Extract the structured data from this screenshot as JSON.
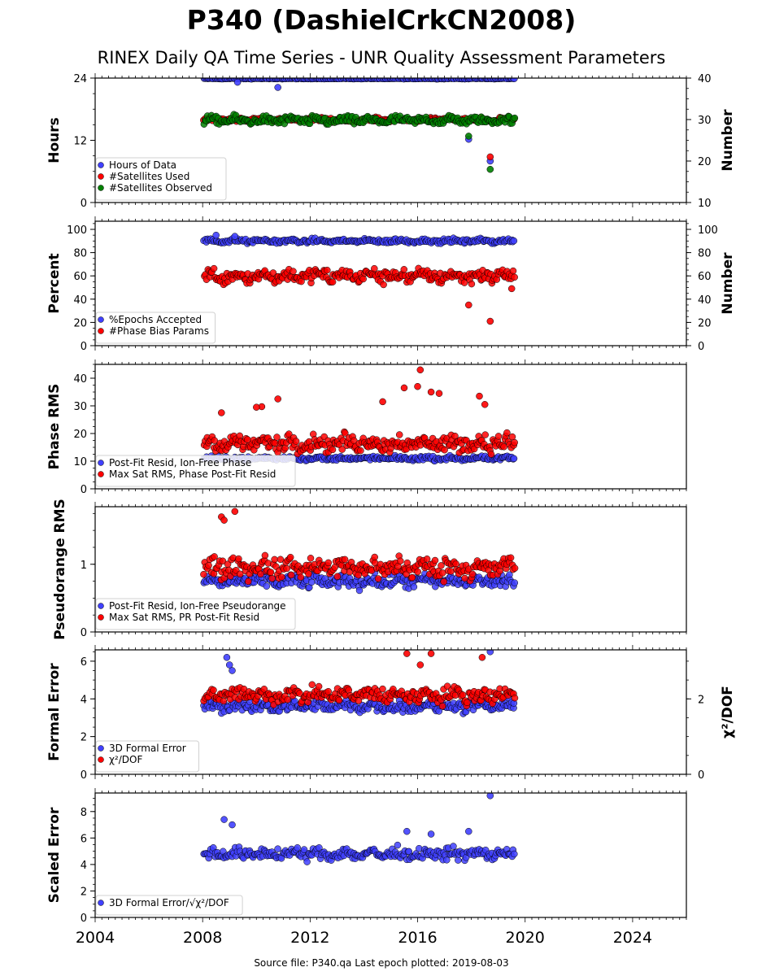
{
  "header": {
    "title": "P340 (DashielCrkCN2008)",
    "subtitle": "RINEX Daily QA Time Series - UNR Quality Assessment Parameters"
  },
  "footer": "Source file: P340.qa Last epoch plotted: 2019-08-03",
  "colors": {
    "blue": "#4040ff",
    "red": "#ff0000",
    "green": "#008000"
  },
  "chart_data": [
    {
      "type": "scatter",
      "xlim": [
        2004,
        2026
      ],
      "ylabel": "Hours",
      "ylim": [
        0,
        24
      ],
      "yticks": [
        "0",
        "12",
        "24"
      ],
      "y2label": "Number",
      "y2lim": [
        10,
        40
      ],
      "y2ticks": [
        "10",
        "20",
        "30",
        "40"
      ],
      "legend_position": "lower-left",
      "series": [
        {
          "name": "Hours of Data",
          "color": "blue",
          "axis": "left",
          "base": 23.9,
          "spread": 0.05,
          "outliers": [
            [
              2009.3,
              23.2
            ],
            [
              2010.8,
              22.2
            ],
            [
              2017.9,
              12.2
            ],
            [
              2018.7,
              8.0
            ]
          ]
        },
        {
          "name": "#Satellites Used",
          "color": "red",
          "axis": "right",
          "base": 30,
          "spread": 0.4,
          "outliers": [
            [
              2009.8,
              30.0
            ],
            [
              2018.7,
              21.0
            ]
          ]
        },
        {
          "name": "#Satellites Observed",
          "color": "green",
          "axis": "right",
          "base": 29.8,
          "spread": 0.8,
          "outliers": [
            [
              2017.9,
              26.0
            ],
            [
              2018.7,
              18.0
            ]
          ]
        }
      ]
    },
    {
      "type": "scatter",
      "xlim": [
        2004,
        2026
      ],
      "ylabel": "Percent",
      "ylim": [
        0,
        107
      ],
      "yticks": [
        "0",
        "20",
        "40",
        "60",
        "80",
        "100"
      ],
      "y2label": "Number",
      "y2lim": [
        0,
        107
      ],
      "y2ticks": [
        "0",
        "20",
        "40",
        "60",
        "80",
        "100"
      ],
      "legend_position": "lower-left",
      "series": [
        {
          "name": "%Epochs Accepted",
          "color": "blue",
          "axis": "left",
          "base": 90,
          "spread": 1.5,
          "outliers": [
            [
              2008.5,
              95
            ],
            [
              2009.2,
              94
            ]
          ]
        },
        {
          "name": "#Phase Bias Params",
          "color": "red",
          "axis": "left",
          "base": 60,
          "spread": 5,
          "outliers": [
            [
              2017.9,
              35
            ],
            [
              2018.7,
              21
            ],
            [
              2019.5,
              49
            ]
          ]
        }
      ]
    },
    {
      "type": "scatter",
      "xlim": [
        2004,
        2026
      ],
      "ylabel": "Phase RMS",
      "ylim": [
        0,
        45
      ],
      "yticks": [
        "0",
        "10",
        "20",
        "30",
        "40"
      ],
      "legend_position": "lower-left",
      "series": [
        {
          "name": "Post-Fit Resid, Ion-Free Phase",
          "color": "blue",
          "axis": "left",
          "base": 11,
          "spread": 0.6,
          "outliers": []
        },
        {
          "name": "Max Sat RMS, Phase Post-Fit Resid",
          "color": "red",
          "axis": "left",
          "base": 16.5,
          "spread": 2.5,
          "outliers": [
            [
              2016.1,
              43
            ],
            [
              2015.5,
              36.5
            ],
            [
              2016.5,
              35
            ],
            [
              2016.8,
              34.5
            ],
            [
              2018.3,
              33.5
            ],
            [
              2010.8,
              32.5
            ],
            [
              2014.7,
              31.5
            ],
            [
              2018.5,
              30.5
            ],
            [
              2010.2,
              29.7
            ],
            [
              2016.0,
              37
            ],
            [
              2008.7,
              27.5
            ],
            [
              2010.0,
              29.5
            ]
          ]
        }
      ]
    },
    {
      "type": "scatter",
      "xlim": [
        2004,
        2026
      ],
      "ylabel": "Pseudorange RMS",
      "ylim": [
        0,
        1.85
      ],
      "yticks": [
        "0",
        "1"
      ],
      "legend_position": "lower-left",
      "series": [
        {
          "name": "Post-Fit Resid, Ion-Free Pseudorange",
          "color": "blue",
          "axis": "left",
          "base": 0.75,
          "spread": 0.08,
          "outliers": []
        },
        {
          "name": "Max Sat RMS, PR Post-Fit Resid",
          "color": "red",
          "axis": "left",
          "base": 0.95,
          "spread": 0.13,
          "outliers": [
            [
              2009.2,
              1.78
            ],
            [
              2008.7,
              1.7
            ],
            [
              2008.8,
              1.65
            ]
          ]
        }
      ]
    },
    {
      "type": "scatter",
      "xlim": [
        2004,
        2026
      ],
      "ylabel": "Formal Error",
      "ylim": [
        0,
        6.6
      ],
      "yticks": [
        "0",
        "2",
        "4",
        "6"
      ],
      "y2label": "χ²/DOF",
      "y2lim": [
        0,
        3.3
      ],
      "y2ticks": [
        "0",
        "2"
      ],
      "legend_position": "lower-left",
      "series": [
        {
          "name": "3D Formal Error",
          "color": "blue",
          "axis": "left",
          "base": 3.6,
          "spread": 0.25,
          "outliers": [
            [
              2008.9,
              6.2
            ],
            [
              2009.0,
              5.8
            ],
            [
              2009.1,
              5.5
            ],
            [
              2018.7,
              6.5
            ]
          ]
        },
        {
          "name": "χ²/DOF",
          "color": "red",
          "axis": "right",
          "base": 2.1,
          "spread": 0.17,
          "outliers": [
            [
              2015.6,
              3.2
            ],
            [
              2016.5,
              3.2
            ],
            [
              2018.4,
              3.1
            ],
            [
              2016.1,
              2.9
            ]
          ]
        }
      ]
    },
    {
      "type": "scatter",
      "xlim": [
        2004,
        2026
      ],
      "ylabel": "Scaled Error",
      "ylim": [
        0,
        9.4
      ],
      "yticks": [
        "0",
        "2",
        "4",
        "6",
        "8"
      ],
      "xticks": [
        "2004",
        "2008",
        "2012",
        "2016",
        "2020",
        "2024"
      ],
      "legend_position": "lower-left",
      "series": [
        {
          "name": "3D Formal Error/√χ²/DOF",
          "color": "blue",
          "axis": "left",
          "base": 4.8,
          "spread": 0.35,
          "outliers": [
            [
              2018.7,
              9.2
            ],
            [
              2008.8,
              7.4
            ],
            [
              2009.1,
              7.0
            ],
            [
              2015.6,
              6.5
            ],
            [
              2017.9,
              6.5
            ],
            [
              2016.5,
              6.3
            ]
          ]
        }
      ]
    }
  ]
}
